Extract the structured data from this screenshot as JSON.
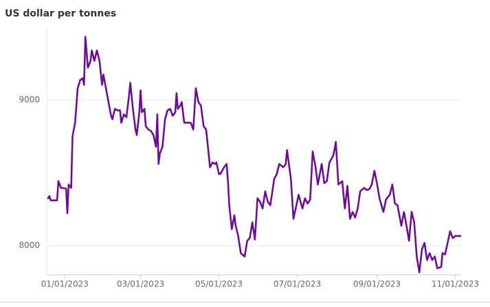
{
  "chart_data": {
    "type": "line",
    "title": "US dollar per tonnes",
    "x": [
      "12/19/2022",
      "12/20/2022",
      "12/21/2022",
      "12/26/2022",
      "12/27/2022",
      "12/29/2022",
      "01/02/2023",
      "01/03/2023",
      "01/04/2023",
      "01/06/2023",
      "01/07/2023",
      "01/09/2023",
      "01/11/2023",
      "01/13/2023",
      "01/15/2023",
      "01/16/2023",
      "01/17/2023",
      "01/19/2023",
      "01/21/2023",
      "01/22/2023",
      "01/24/2023",
      "01/26/2023",
      "01/28/2023",
      "01/30/2023",
      "01/31/2023",
      "02/03/2023",
      "02/06/2023",
      "02/07/2023",
      "02/09/2023",
      "02/11/2023",
      "02/13/2023",
      "02/14/2023",
      "02/16/2023",
      "02/18/2023",
      "02/20/2023",
      "02/21/2023",
      "02/23/2023",
      "02/25/2023",
      "02/26/2023",
      "02/28/2023",
      "03/01/2023",
      "03/02/2023",
      "03/04/2023",
      "03/05/2023",
      "03/07/2023",
      "03/09/2023",
      "03/11/2023",
      "03/13/2023",
      "03/14/2023",
      "03/15/2023",
      "03/16/2023",
      "03/18/2023",
      "03/20/2023",
      "03/22/2023",
      "03/24/2023",
      "03/26/2023",
      "03/28/2023",
      "03/29/2023",
      "03/30/2023",
      "04/01/2023",
      "04/02/2023",
      "04/04/2023",
      "04/06/2023",
      "04/09/2023",
      "04/11/2023",
      "04/13/2023",
      "04/15/2023",
      "04/17/2023",
      "04/19/2023",
      "04/21/2023",
      "04/23/2023",
      "04/24/2023",
      "04/26/2023",
      "04/28/2023",
      "04/29/2023",
      "05/01/2023",
      "05/02/2023",
      "05/05/2023",
      "05/07/2023",
      "05/08/2023",
      "05/09/2023",
      "05/11/2023",
      "05/13/2023",
      "05/14/2023",
      "05/16/2023",
      "05/18/2023",
      "05/21/2023",
      "05/23/2023",
      "05/25/2023",
      "05/27/2023",
      "05/29/2023",
      "05/31/2023",
      "06/02/2023",
      "06/04/2023",
      "06/06/2023",
      "06/08/2023",
      "06/10/2023",
      "06/13/2023",
      "06/15/2023",
      "06/17/2023",
      "06/20/2023",
      "06/22/2023",
      "06/23/2023",
      "06/26/2023",
      "06/28/2023",
      "06/30/2023",
      "07/02/2023",
      "07/05/2023",
      "07/07/2023",
      "07/09/2023",
      "07/11/2023",
      "07/13/2023",
      "07/15/2023",
      "07/17/2023",
      "07/20/2023",
      "07/22/2023",
      "07/24/2023",
      "07/26/2023",
      "07/29/2023",
      "07/31/2023",
      "08/02/2023",
      "08/05/2023",
      "08/07/2023",
      "08/09/2023",
      "08/11/2023",
      "08/13/2023",
      "08/15/2023",
      "08/17/2023",
      "08/19/2023",
      "08/22/2023",
      "08/24/2023",
      "08/26/2023",
      "08/28/2023",
      "08/30/2023",
      "09/01/2023",
      "09/03/2023",
      "09/06/2023",
      "09/08/2023",
      "09/11/2023",
      "09/13/2023",
      "09/15/2023",
      "09/17/2023",
      "09/20/2023",
      "09/22/2023",
      "09/24/2023",
      "09/26/2023",
      "09/28/2023",
      "09/30/2023",
      "10/02/2023",
      "10/04/2023",
      "10/06/2023",
      "10/08/2023",
      "10/10/2023",
      "10/12/2023",
      "10/14/2023",
      "10/16/2023",
      "10/18/2023",
      "10/21/2023",
      "10/22/2023",
      "10/24/2023",
      "10/26/2023",
      "10/28/2023",
      "10/30/2023",
      "11/01/2023",
      "11/05/2023"
    ],
    "values": [
      8325,
      8340,
      8311,
      8311,
      8443,
      8396,
      8392,
      8222,
      8420,
      8396,
      8750,
      8844,
      9080,
      9137,
      9150,
      9104,
      9434,
      9222,
      9269,
      9340,
      9269,
      9340,
      9269,
      9104,
      9175,
      9033,
      8892,
      8868,
      8939,
      8929,
      8929,
      8844,
      8901,
      8882,
      9033,
      9118,
      8939,
      8797,
      8759,
      8915,
      9066,
      8915,
      8939,
      8821,
      8797,
      8788,
      8759,
      8679,
      8901,
      8561,
      8632,
      8679,
      8868,
      8929,
      8939,
      8892,
      8915,
      9047,
      8939,
      8962,
      8986,
      8844,
      8844,
      8844,
      8797,
      9080,
      8986,
      8962,
      8821,
      8797,
      8632,
      8538,
      8571,
      8561,
      8571,
      8491,
      8491,
      8538,
      8561,
      8443,
      8278,
      8113,
      8208,
      8137,
      8066,
      7948,
      7925,
      8033,
      8052,
      8160,
      8042,
      8325,
      8302,
      8255,
      8373,
      8302,
      8278,
      8458,
      8491,
      8561,
      8538,
      8561,
      8656,
      8458,
      8184,
      8264,
      8349,
      8255,
      8325,
      8288,
      8316,
      8646,
      8552,
      8420,
      8561,
      8429,
      8443,
      8571,
      8618,
      8712,
      8420,
      8443,
      8255,
      8410,
      8184,
      8231,
      8193,
      8255,
      8373,
      8396,
      8382,
      8387,
      8420,
      8514,
      8429,
      8325,
      8231,
      8316,
      8349,
      8420,
      8288,
      8278,
      8137,
      8231,
      8137,
      8033,
      8231,
      8160,
      7925,
      7816,
      7972,
      8019,
      7901,
      7948,
      7901,
      7925,
      7844,
      7854,
      7948,
      7939,
      8019,
      8099,
      8052,
      8066,
      8066
    ],
    "color": "#6c0e94",
    "xlim": [
      "12/19/2022",
      "11/05/2023"
    ],
    "xticks": [
      "01/01/2023",
      "03/01/2023",
      "05/01/2023",
      "07/01/2023",
      "09/01/2023",
      "11/01/2023"
    ],
    "ylim": [
      7800,
      9500
    ],
    "yticks": [
      8000,
      9000
    ],
    "grid": true
  }
}
